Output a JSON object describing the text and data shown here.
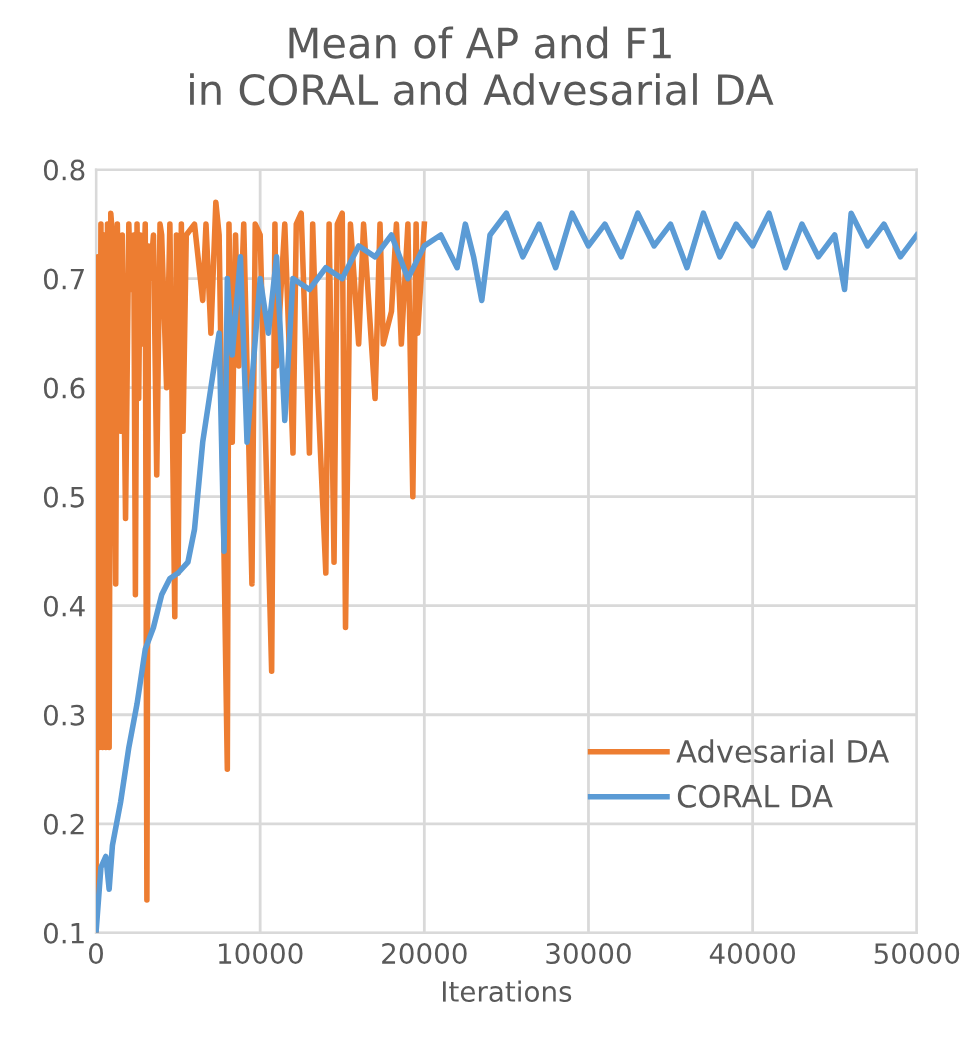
{
  "chart_data": {
    "type": "line",
    "title": "Mean of AP and F1\nin CORAL and Advesarial DA",
    "xlabel": "Iterations",
    "xlim": [
      0,
      50000
    ],
    "xticks": [
      0,
      10000,
      20000,
      30000,
      40000,
      50000
    ],
    "ylim": [
      0.1,
      0.8
    ],
    "yticks": [
      0.1,
      0.2,
      0.3,
      0.4,
      0.5,
      0.6,
      0.7,
      0.8
    ],
    "grid": true,
    "legend": "lower right",
    "series": [
      {
        "name": "Advesarial DA",
        "color": "#ed7d31",
        "x": [
          0,
          100,
          200,
          300,
          400,
          500,
          600,
          700,
          800,
          900,
          1000,
          1200,
          1300,
          1500,
          1600,
          1800,
          2000,
          2100,
          2300,
          2400,
          2500,
          2600,
          2700,
          2800,
          3000,
          3100,
          3200,
          3300,
          3500,
          3700,
          3900,
          4000,
          4300,
          4500,
          4800,
          4900,
          5000,
          5200,
          5300,
          5500,
          6000,
          6500,
          6700,
          7000,
          7300,
          7500,
          8000,
          8100,
          8300,
          8500,
          8700,
          9000,
          9500,
          9700,
          10000,
          10700,
          10900,
          11000,
          11500,
          12000,
          12200,
          12500,
          13000,
          13200,
          13500,
          14000,
          14200,
          14500,
          14700,
          15000,
          15200,
          15500,
          16000,
          16300,
          17000,
          17300,
          17500,
          18000,
          18300,
          18600,
          19000,
          19300,
          19500,
          19600,
          20000
        ],
        "values": [
          0.1,
          0.72,
          0.27,
          0.75,
          0.27,
          0.74,
          0.27,
          0.75,
          0.27,
          0.76,
          0.74,
          0.42,
          0.75,
          0.56,
          0.74,
          0.48,
          0.75,
          0.69,
          0.74,
          0.41,
          0.75,
          0.59,
          0.74,
          0.64,
          0.75,
          0.13,
          0.73,
          0.7,
          0.74,
          0.52,
          0.75,
          0.74,
          0.6,
          0.75,
          0.39,
          0.74,
          0.43,
          0.75,
          0.56,
          0.74,
          0.75,
          0.68,
          0.75,
          0.65,
          0.77,
          0.74,
          0.25,
          0.75,
          0.55,
          0.74,
          0.62,
          0.75,
          0.42,
          0.75,
          0.74,
          0.34,
          0.75,
          0.62,
          0.75,
          0.54,
          0.75,
          0.76,
          0.54,
          0.75,
          0.6,
          0.43,
          0.75,
          0.44,
          0.75,
          0.76,
          0.38,
          0.75,
          0.64,
          0.75,
          0.59,
          0.75,
          0.64,
          0.67,
          0.75,
          0.64,
          0.75,
          0.5,
          0.75,
          0.65,
          0.75
        ]
      },
      {
        "name": "CORAL DA",
        "color": "#5b9bd5",
        "x": [
          0,
          300,
          600,
          800,
          1000,
          1500,
          2000,
          2500,
          3000,
          3500,
          4000,
          4500,
          5000,
          5600,
          6000,
          6500,
          7000,
          7500,
          7800,
          8000,
          8300,
          8800,
          9200,
          10000,
          10500,
          11000,
          11500,
          12000,
          13000,
          14000,
          15000,
          16000,
          17000,
          18000,
          19000,
          20000,
          21000,
          22000,
          22500,
          23000,
          23500,
          24000,
          25000,
          26000,
          27000,
          28000,
          29000,
          30000,
          31000,
          32000,
          33000,
          34000,
          35000,
          36000,
          37000,
          38000,
          39000,
          40000,
          41000,
          42000,
          43000,
          44000,
          45000,
          45600,
          46000,
          47000,
          48000,
          49000,
          50000
        ],
        "values": [
          0.1,
          0.16,
          0.17,
          0.14,
          0.18,
          0.22,
          0.27,
          0.31,
          0.36,
          0.38,
          0.41,
          0.425,
          0.43,
          0.44,
          0.47,
          0.55,
          0.6,
          0.65,
          0.45,
          0.7,
          0.63,
          0.72,
          0.55,
          0.7,
          0.65,
          0.72,
          0.57,
          0.7,
          0.69,
          0.71,
          0.7,
          0.73,
          0.72,
          0.74,
          0.7,
          0.73,
          0.74,
          0.71,
          0.75,
          0.72,
          0.68,
          0.74,
          0.76,
          0.72,
          0.75,
          0.71,
          0.76,
          0.73,
          0.75,
          0.72,
          0.76,
          0.73,
          0.75,
          0.71,
          0.76,
          0.72,
          0.75,
          0.73,
          0.76,
          0.71,
          0.75,
          0.72,
          0.74,
          0.69,
          0.76,
          0.73,
          0.75,
          0.72,
          0.74
        ]
      }
    ]
  }
}
